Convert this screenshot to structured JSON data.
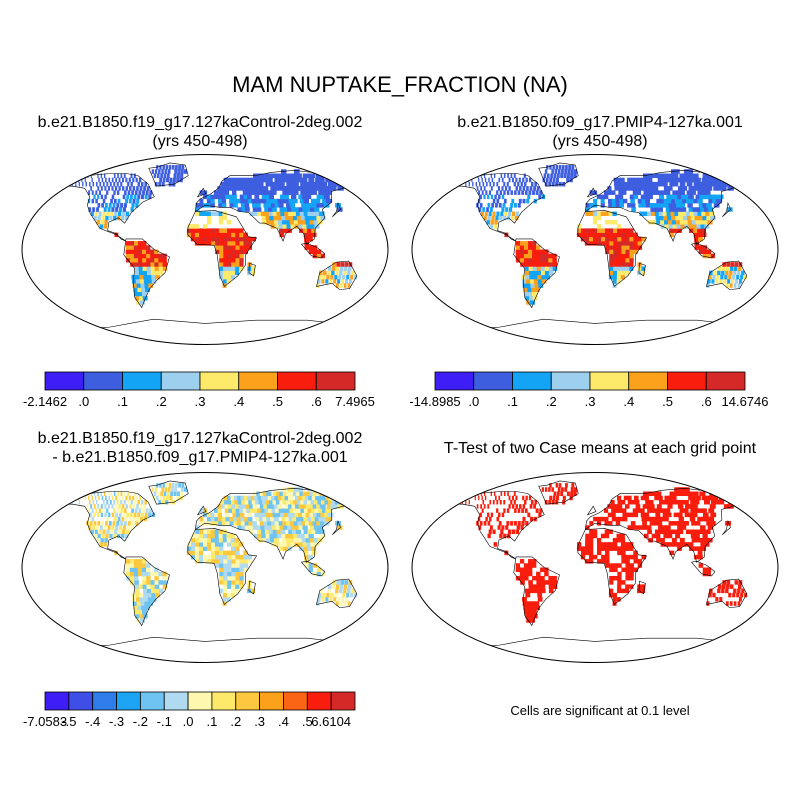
{
  "title": "MAM NUPTAKE_FRACTION (NA)",
  "panels": [
    {
      "title_line1": "b.e21.B1850.f19_g17.127kaControl-2deg.002",
      "title_line2": "(yrs 450-498)",
      "colorbar": {
        "colors": [
          "#3f1df5",
          "#3e5ee0",
          "#14a4f5",
          "#9dd0ef",
          "#fde96a",
          "#fba11b",
          "#f81d0d",
          "#d52928"
        ],
        "labels": [
          "-2.1462",
          ".0",
          ".1",
          ".2",
          ".3",
          ".4",
          ".5",
          ".6",
          "7.4965"
        ]
      }
    },
    {
      "title_line1": "b.e21.B1850.f09_g17.PMIP4-127ka.001",
      "title_line2": "(yrs 450-498)",
      "colorbar": {
        "colors": [
          "#3f1df5",
          "#3e5ee0",
          "#14a4f5",
          "#9dd0ef",
          "#fde96a",
          "#fba11b",
          "#f81d0d",
          "#d52928"
        ],
        "labels": [
          "-14.8985",
          ".0",
          ".1",
          ".2",
          ".3",
          ".4",
          ".5",
          ".6",
          "14.6746"
        ]
      }
    },
    {
      "title_line1": "b.e21.B1850.f19_g17.127kaControl-2deg.002",
      "title_line2": "- b.e21.B1850.f09_g17.PMIP4-127ka.001",
      "colorbar": {
        "colors": [
          "#3f1df5",
          "#3e4ee6",
          "#2f7de8",
          "#1ca4f2",
          "#6fc3f0",
          "#afdaf0",
          "#fdf7b0",
          "#fde96a",
          "#fcc93e",
          "#fba11b",
          "#f96514",
          "#f81d0d",
          "#d52928"
        ],
        "labels": [
          "-7.0583",
          "-.5",
          "-.4",
          "-.3",
          "-.2",
          "-.1",
          ".0",
          ".1",
          ".2",
          ".3",
          ".4",
          ".5",
          "6.6104"
        ]
      }
    },
    {
      "title_line1": "T-Test of two Case means at each grid point",
      "note": "Cells are significant at 0.1 level"
    }
  ]
}
